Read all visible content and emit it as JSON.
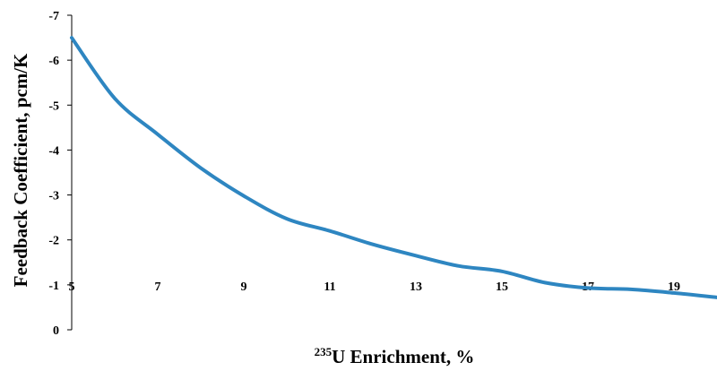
{
  "chart_data": {
    "type": "line",
    "title": "",
    "xlabel_sup": "235",
    "xlabel_main": "U Enrichment, %",
    "ylabel": "Feedback Coefficient, pcm/K",
    "xlim": [
      5,
      20
    ],
    "ylim": [
      0,
      -7
    ],
    "x_ticks": [
      5,
      7,
      9,
      11,
      13,
      15,
      17,
      19
    ],
    "y_ticks": [
      0,
      -1,
      -2,
      -3,
      -4,
      -5,
      -6,
      -7
    ],
    "grid": false,
    "line_color": "#2e86c1",
    "series": [
      {
        "x": [
          5,
          6,
          7,
          8,
          9,
          10,
          11,
          12,
          13,
          14,
          15,
          16,
          17,
          18,
          19,
          20
        ],
        "y": [
          -6.5,
          -5.15,
          -4.35,
          -3.6,
          -2.98,
          -2.47,
          -2.2,
          -1.9,
          -1.65,
          -1.42,
          -1.3,
          -1.05,
          -0.93,
          -0.9,
          -0.82,
          -0.72
        ]
      }
    ]
  }
}
